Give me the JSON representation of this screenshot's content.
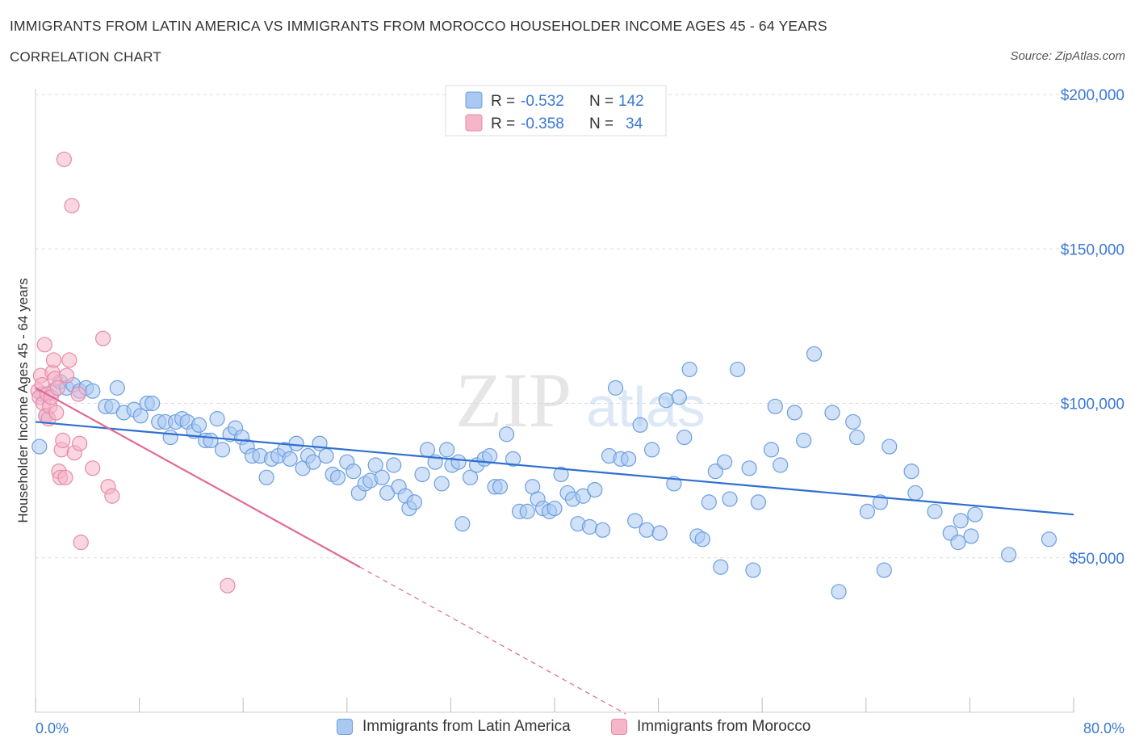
{
  "header": {
    "title": "IMMIGRANTS FROM LATIN AMERICA VS IMMIGRANTS FROM MOROCCO HOUSEHOLDER INCOME AGES 45 - 64 YEARS",
    "subtitle": "CORRELATION CHART",
    "source": "Source: ZipAtlas.com"
  },
  "legend_box": {
    "rows": [
      {
        "r_label": "R =",
        "r_value": "-0.532",
        "n_label": "N =",
        "n_value": "142"
      },
      {
        "r_label": "R =",
        "r_value": "-0.358",
        "n_label": "N =",
        "n_value": "34"
      }
    ]
  },
  "watermark": {
    "zip": "ZIP",
    "atlas": "atlas"
  },
  "colors": {
    "blue_fill": "#a9c8f2",
    "blue_stroke": "#6c9fe0",
    "blue_line": "#2f6fd1",
    "pink_fill": "#f6b5c8",
    "pink_stroke": "#e88aa8",
    "pink_line": "#e06a96",
    "grid": "#dddddd",
    "tick_text": "#3a78d6"
  },
  "chart_data": {
    "type": "scatter",
    "title": "IMMIGRANTS FROM LATIN AMERICA VS IMMIGRANTS FROM MOROCCO HOUSEHOLDER INCOME AGES 45 - 64 YEARS",
    "xlabel": "",
    "ylabel": "Householder Income Ages 45 - 64 years",
    "xlim": [
      0,
      80
    ],
    "ylim": [
      0,
      200000
    ],
    "x_tick_labels": [
      "0.0%",
      "80.0%"
    ],
    "y_ticks": [
      50000,
      100000,
      150000,
      200000
    ],
    "y_tick_labels": [
      "$50,000",
      "$100,000",
      "$150,000",
      "$200,000"
    ],
    "grid": true,
    "series": [
      {
        "name": "Immigrants from Latin America",
        "color": "#a9c8f2",
        "trend": {
          "x0": 0,
          "y0": 94000,
          "x1": 80,
          "y1": 64000
        },
        "points": [
          [
            0.3,
            86000
          ],
          [
            0.5,
            103000
          ],
          [
            0.8,
            96000
          ],
          [
            1.4,
            104000
          ],
          [
            1.9,
            107000
          ],
          [
            2.4,
            105000
          ],
          [
            2.9,
            106000
          ],
          [
            3.4,
            104000
          ],
          [
            3.9,
            105000
          ],
          [
            4.4,
            104000
          ],
          [
            5.4,
            99000
          ],
          [
            5.9,
            99000
          ],
          [
            6.3,
            105000
          ],
          [
            6.8,
            97000
          ],
          [
            7.6,
            98000
          ],
          [
            8.1,
            96000
          ],
          [
            8.6,
            100000
          ],
          [
            9.0,
            100000
          ],
          [
            9.5,
            94000
          ],
          [
            10.0,
            94000
          ],
          [
            10.4,
            89000
          ],
          [
            10.8,
            94000
          ],
          [
            11.3,
            95000
          ],
          [
            11.7,
            94000
          ],
          [
            12.2,
            91000
          ],
          [
            12.6,
            93000
          ],
          [
            13.1,
            88000
          ],
          [
            13.5,
            88000
          ],
          [
            14.0,
            95000
          ],
          [
            14.4,
            85000
          ],
          [
            15.0,
            90000
          ],
          [
            15.4,
            92000
          ],
          [
            15.9,
            89000
          ],
          [
            16.3,
            86000
          ],
          [
            16.7,
            83000
          ],
          [
            17.3,
            83000
          ],
          [
            17.8,
            76000
          ],
          [
            18.2,
            82000
          ],
          [
            18.7,
            83000
          ],
          [
            19.2,
            85000
          ],
          [
            19.6,
            82000
          ],
          [
            20.1,
            87000
          ],
          [
            20.6,
            79000
          ],
          [
            21.0,
            83000
          ],
          [
            21.4,
            81000
          ],
          [
            21.9,
            87000
          ],
          [
            22.4,
            83000
          ],
          [
            22.9,
            77000
          ],
          [
            23.3,
            76000
          ],
          [
            24.0,
            81000
          ],
          [
            24.5,
            78000
          ],
          [
            24.9,
            71000
          ],
          [
            25.4,
            74000
          ],
          [
            25.8,
            75000
          ],
          [
            26.2,
            80000
          ],
          [
            26.7,
            76000
          ],
          [
            27.1,
            71000
          ],
          [
            27.6,
            80000
          ],
          [
            28.0,
            73000
          ],
          [
            28.5,
            70000
          ],
          [
            28.8,
            66000
          ],
          [
            29.2,
            68000
          ],
          [
            29.8,
            77000
          ],
          [
            30.2,
            85000
          ],
          [
            30.8,
            81000
          ],
          [
            31.3,
            74000
          ],
          [
            31.7,
            85000
          ],
          [
            32.1,
            80000
          ],
          [
            32.6,
            81000
          ],
          [
            32.9,
            61000
          ],
          [
            33.5,
            76000
          ],
          [
            34.0,
            80000
          ],
          [
            34.6,
            82000
          ],
          [
            35.0,
            83000
          ],
          [
            35.4,
            73000
          ],
          [
            35.8,
            73000
          ],
          [
            36.3,
            90000
          ],
          [
            36.8,
            82000
          ],
          [
            37.3,
            65000
          ],
          [
            37.9,
            65000
          ],
          [
            38.3,
            73000
          ],
          [
            38.7,
            69000
          ],
          [
            39.1,
            66000
          ],
          [
            39.6,
            65000
          ],
          [
            40.0,
            66000
          ],
          [
            40.5,
            77000
          ],
          [
            41.0,
            71000
          ],
          [
            41.4,
            69000
          ],
          [
            41.8,
            61000
          ],
          [
            42.2,
            70000
          ],
          [
            42.7,
            60000
          ],
          [
            43.1,
            72000
          ],
          [
            43.7,
            59000
          ],
          [
            44.2,
            83000
          ],
          [
            44.7,
            105000
          ],
          [
            45.1,
            82000
          ],
          [
            45.7,
            82000
          ],
          [
            46.2,
            62000
          ],
          [
            46.6,
            93000
          ],
          [
            47.1,
            59000
          ],
          [
            47.5,
            85000
          ],
          [
            48.1,
            58000
          ],
          [
            48.6,
            101000
          ],
          [
            49.2,
            74000
          ],
          [
            49.6,
            102000
          ],
          [
            50.0,
            89000
          ],
          [
            50.4,
            111000
          ],
          [
            51.0,
            57000
          ],
          [
            51.4,
            56000
          ],
          [
            51.9,
            68000
          ],
          [
            52.4,
            78000
          ],
          [
            52.8,
            47000
          ],
          [
            53.1,
            81000
          ],
          [
            53.5,
            69000
          ],
          [
            54.1,
            111000
          ],
          [
            55.0,
            79000
          ],
          [
            55.3,
            46000
          ],
          [
            55.7,
            68000
          ],
          [
            56.7,
            85000
          ],
          [
            57.0,
            99000
          ],
          [
            57.4,
            80000
          ],
          [
            58.5,
            97000
          ],
          [
            59.2,
            88000
          ],
          [
            60.0,
            116000
          ],
          [
            61.4,
            97000
          ],
          [
            61.9,
            39000
          ],
          [
            63.0,
            94000
          ],
          [
            63.3,
            89000
          ],
          [
            64.1,
            65000
          ],
          [
            65.1,
            68000
          ],
          [
            65.4,
            46000
          ],
          [
            65.8,
            86000
          ],
          [
            67.5,
            78000
          ],
          [
            67.8,
            71000
          ],
          [
            69.3,
            65000
          ],
          [
            70.5,
            58000
          ],
          [
            71.1,
            55000
          ],
          [
            71.3,
            62000
          ],
          [
            72.1,
            57000
          ],
          [
            72.4,
            64000
          ],
          [
            75.0,
            51000
          ],
          [
            78.1,
            56000
          ]
        ]
      },
      {
        "name": "Immigrants from Morocco",
        "color": "#f6b5c8",
        "trend": {
          "x0": 0,
          "y0": 105000,
          "x1": 25,
          "y1": 47000,
          "dashed_to_x": 45.5
        },
        "points": [
          [
            0.2,
            104000
          ],
          [
            0.3,
            102000
          ],
          [
            0.4,
            109000
          ],
          [
            0.5,
            106000
          ],
          [
            0.6,
            100000
          ],
          [
            0.7,
            119000
          ],
          [
            0.8,
            96000
          ],
          [
            0.9,
            103000
          ],
          [
            1.0,
            95000
          ],
          [
            1.1,
            99000
          ],
          [
            1.2,
            102000
          ],
          [
            1.3,
            110000
          ],
          [
            1.4,
            114000
          ],
          [
            1.5,
            108000
          ],
          [
            1.6,
            97000
          ],
          [
            1.7,
            105000
          ],
          [
            1.8,
            78000
          ],
          [
            1.9,
            76000
          ],
          [
            2.0,
            85000
          ],
          [
            2.1,
            88000
          ],
          [
            2.2,
            179000
          ],
          [
            2.3,
            76000
          ],
          [
            2.4,
            109000
          ],
          [
            2.6,
            114000
          ],
          [
            2.8,
            164000
          ],
          [
            3.0,
            84000
          ],
          [
            3.3,
            103000
          ],
          [
            3.4,
            87000
          ],
          [
            3.5,
            55000
          ],
          [
            4.4,
            79000
          ],
          [
            5.2,
            121000
          ],
          [
            5.6,
            73000
          ],
          [
            5.9,
            70000
          ],
          [
            14.8,
            41000
          ]
        ]
      }
    ]
  }
}
